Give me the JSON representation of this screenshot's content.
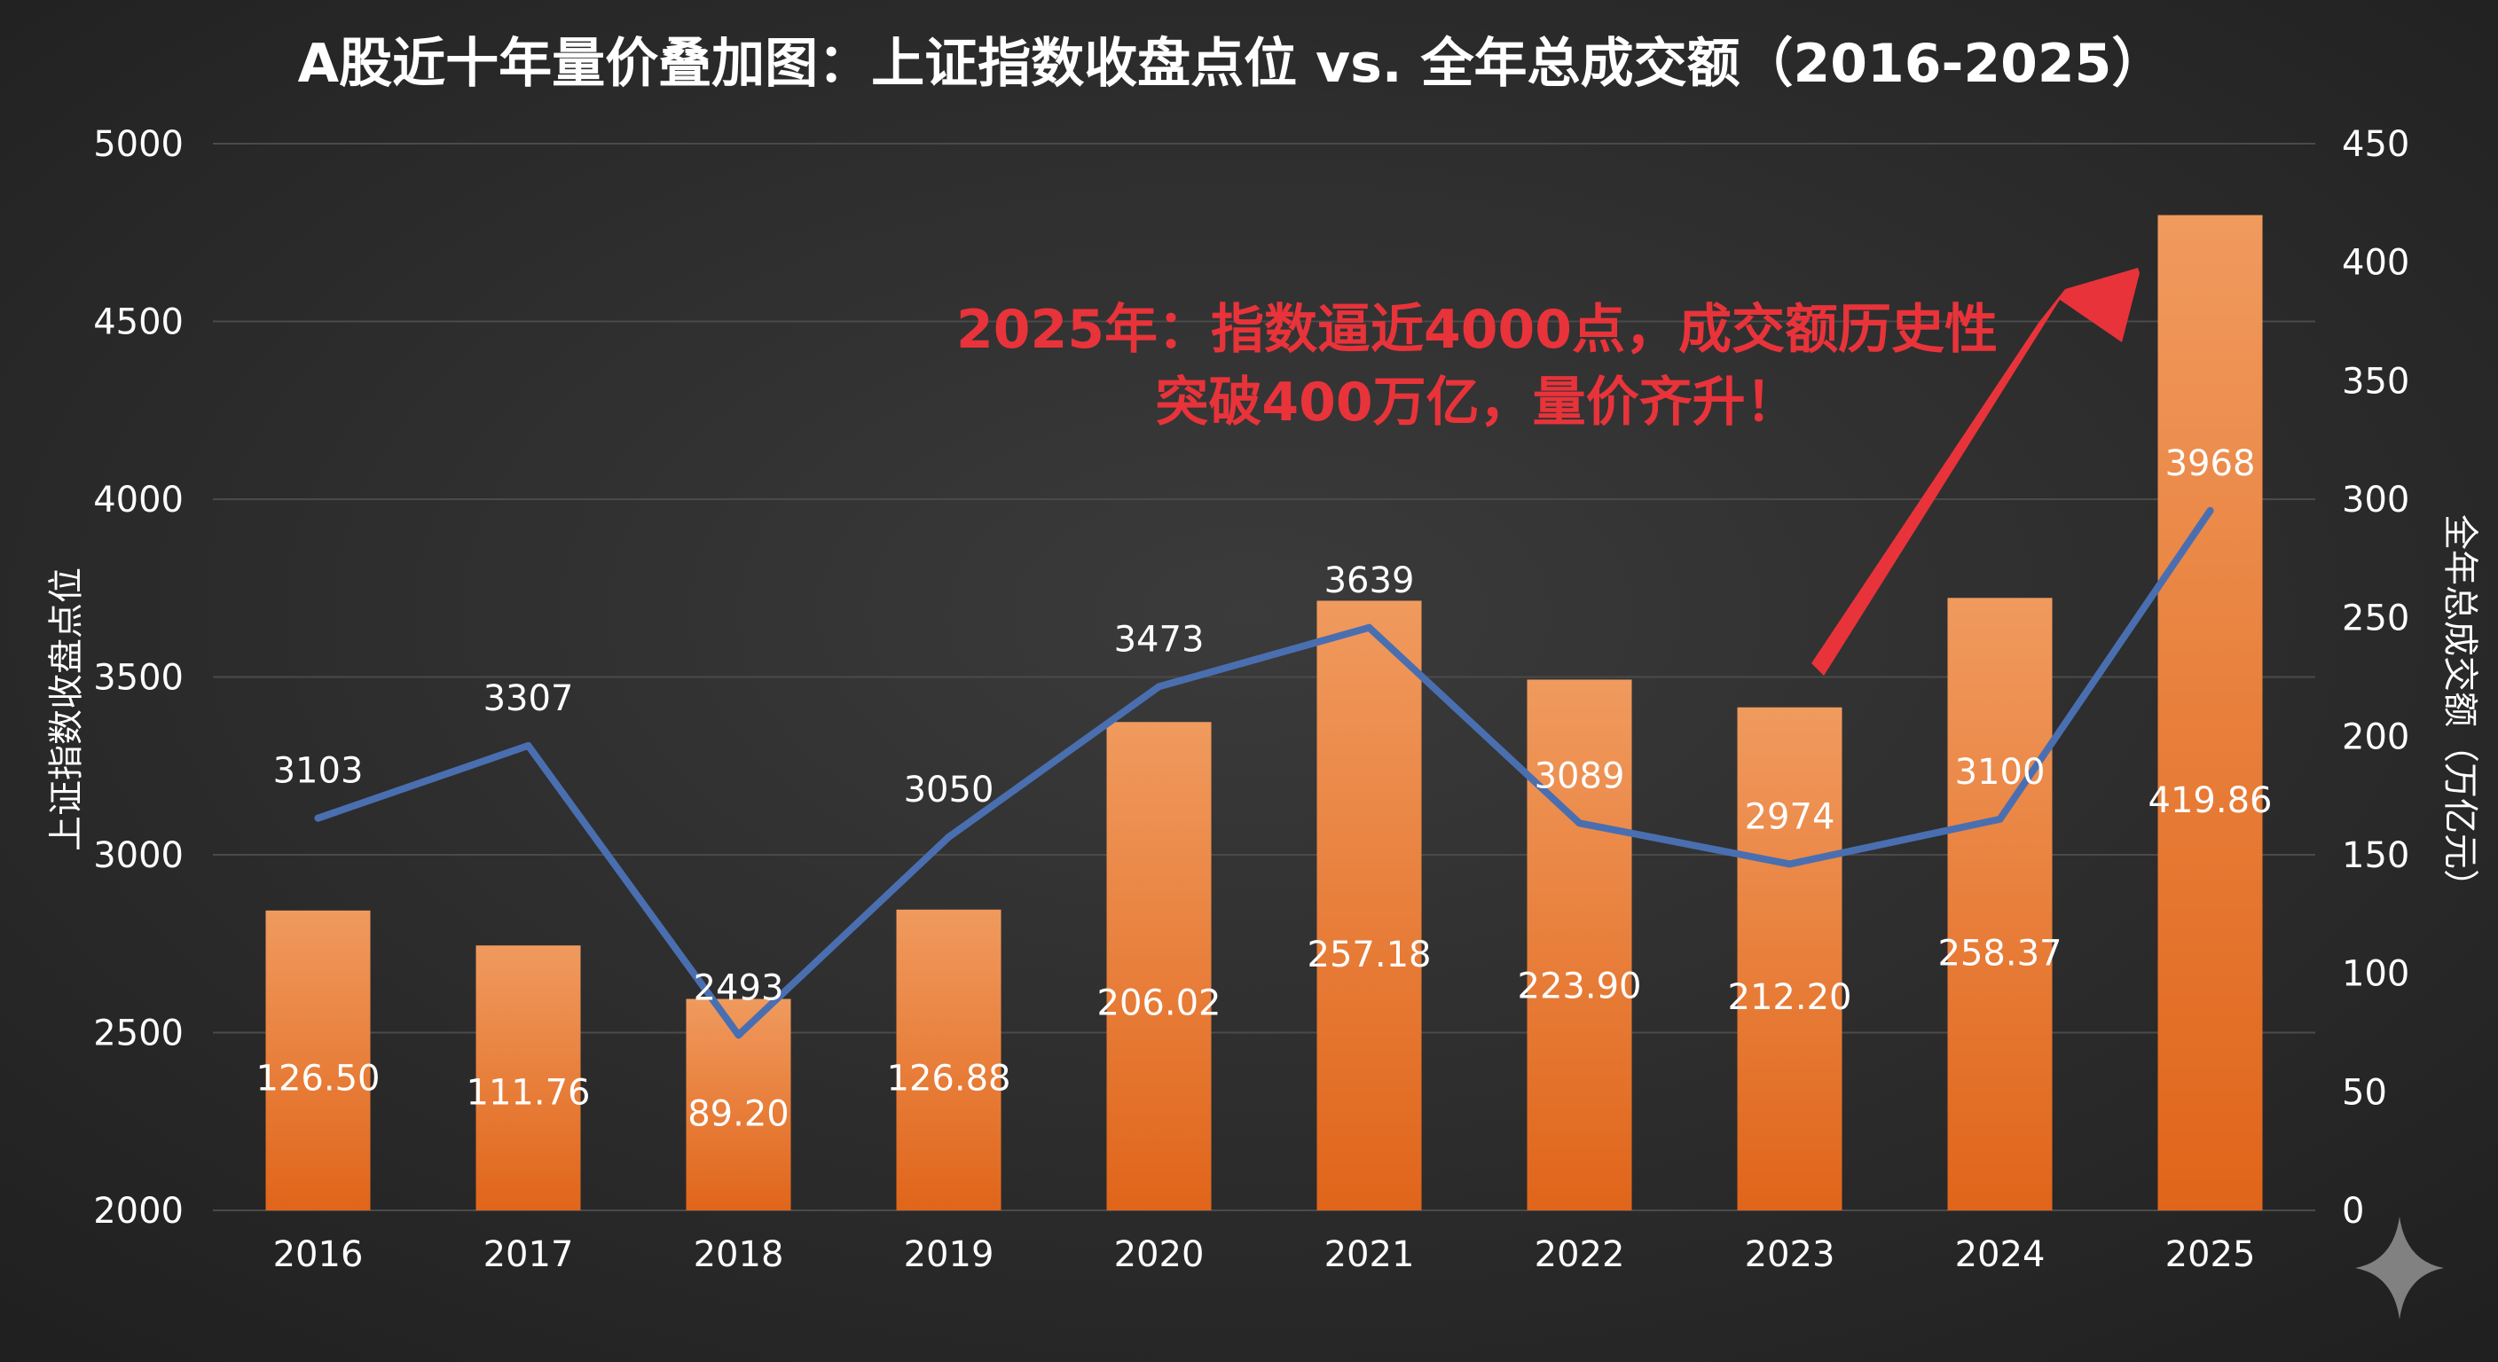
{
  "chart_data": {
    "type": "bar+line",
    "title": "A股近十年量价叠加图：上证指数收盘点位 vs. 全年总成交额（2016-2025）",
    "categories": [
      "2016",
      "2017",
      "2018",
      "2019",
      "2020",
      "2021",
      "2022",
      "2023",
      "2024",
      "2025"
    ],
    "series": [
      {
        "name": "全年总成交额",
        "kind": "bar",
        "axis": "right",
        "unit": "万亿元",
        "values": [
          126.5,
          111.76,
          89.2,
          126.88,
          206.02,
          257.18,
          223.9,
          212.2,
          258.37,
          419.86
        ],
        "labels": [
          "126.50",
          "111.76",
          "89.20",
          "126.88",
          "206.02",
          "257.18",
          "223.90",
          "212.20",
          "258.37",
          "419.86"
        ]
      },
      {
        "name": "上证指数收盘点位",
        "kind": "line",
        "axis": "left",
        "values": [
          3103,
          3307,
          2493,
          3050,
          3473,
          3639,
          3089,
          2974,
          3100,
          3968
        ],
        "labels": [
          "3103",
          "3307",
          "2493",
          "3050",
          "3473",
          "3639",
          "3089",
          "2974",
          "3100",
          "3968"
        ]
      }
    ],
    "yleft": {
      "label": "上证指数收盘点位",
      "lim": [
        2000,
        5000
      ],
      "ticks": [
        "2000",
        "2500",
        "3000",
        "3500",
        "4000",
        "4500",
        "5000"
      ]
    },
    "yright": {
      "label": "全年总成交额（万亿元）",
      "lim": [
        0,
        450
      ],
      "ticks": [
        "0",
        "50",
        "100",
        "150",
        "200",
        "250",
        "300",
        "350",
        "400",
        "450"
      ]
    },
    "annotation": {
      "lines": [
        "2025年：指数逼近4000点，成交额历史性",
        "突破400万亿，量价齐升！"
      ]
    },
    "colors": {
      "bar_top": "#f09a5e",
      "bar_bottom": "#e0651a",
      "line": "#4a6fb0",
      "annotation": "#e8333a",
      "text": "#ffffff",
      "grid": "#4a4a4a"
    }
  }
}
